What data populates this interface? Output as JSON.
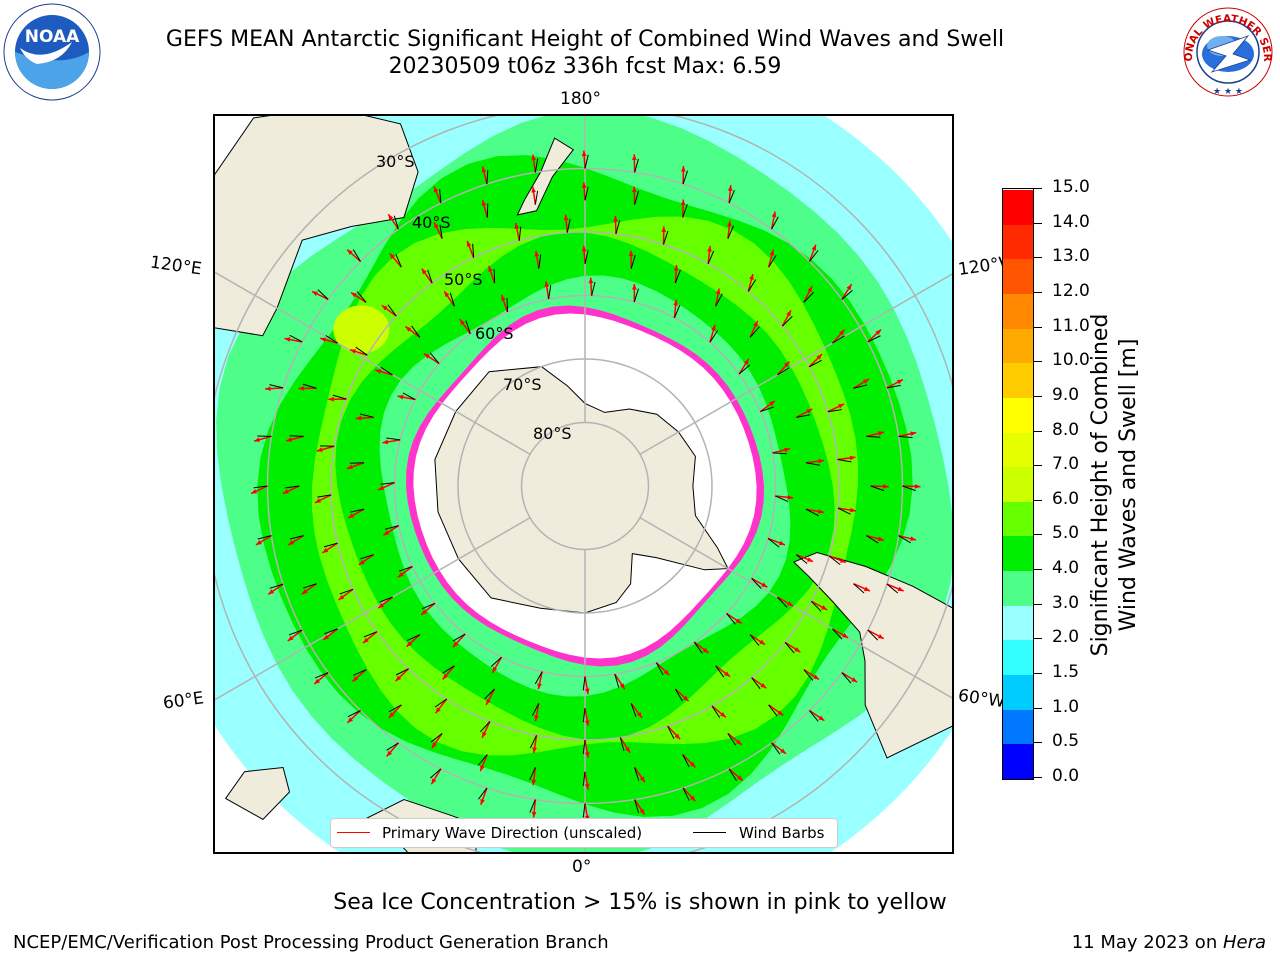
{
  "header": {
    "title_line1": "GEFS MEAN Antarctic Significant Height of Combined Wind Waves and Swell",
    "title_line2": "20230509 t06z 336h fcst   Max: 6.59",
    "noaa_logo_text": "NOAA",
    "nws_logo_text": "NATIONAL WEATHER SERVICE"
  },
  "map": {
    "projection": "south-polar-stereographic",
    "longitude_labels": {
      "top": "180°",
      "bottom": "0°",
      "left_upper": "120°E",
      "left_lower": "60°E",
      "right_upper": "120°W",
      "right_lower": "60°W"
    },
    "latitude_labels": [
      "30°S",
      "40°S",
      "50°S",
      "60°S",
      "70°S",
      "80°S"
    ],
    "colors": {
      "land": "#efecdc",
      "ice_shelf": "#ffffff",
      "sea_ice": "#ff33cc",
      "arrow": "#ff0000",
      "barb": "#000000",
      "grid": "#b3b3b3"
    },
    "wave_bands": [
      {
        "max_lat": -28,
        "color": "#99ffff",
        "range": "2.0-3.0"
      },
      {
        "max_lat": -38,
        "color": "#4dff88",
        "range": "3.0-4.0"
      },
      {
        "max_lat": -44,
        "color": "#00ee00",
        "range": "4.0-5.0"
      },
      {
        "max_lat": -50,
        "color": "#66ff00",
        "range": "5.0-6.0"
      },
      {
        "max_lat": -58,
        "color": "#00ee00",
        "range": "4.0-5.0"
      },
      {
        "max_lat": -62,
        "color": "#4dff88",
        "range": "3.0-4.0"
      }
    ]
  },
  "legend": {
    "wave_direction_label": "Primary Wave Direction (unscaled)",
    "wind_barbs_label": "Wind Barbs",
    "wave_direction_color": "#ff0000",
    "wind_barbs_color": "#000000"
  },
  "colorbar": {
    "label_line1": "Significant Height of Combined",
    "label_line2": "Wind Waves and Swell [m]",
    "ticks": [
      "0.0",
      "0.5",
      "1.0",
      "1.5",
      "2.0",
      "3.0",
      "4.0",
      "5.0",
      "6.0",
      "7.0",
      "8.0",
      "9.0",
      "10.0",
      "11.0",
      "12.0",
      "13.0",
      "14.0",
      "15.0"
    ],
    "colors": [
      "#0000ff",
      "#0077ff",
      "#00ccff",
      "#33ffff",
      "#99ffff",
      "#4dff88",
      "#00ee00",
      "#66ff00",
      "#ccff00",
      "#e6ff00",
      "#ffff00",
      "#ffcc00",
      "#ffaa00",
      "#ff8800",
      "#ff5500",
      "#ff2a00",
      "#ff0000"
    ]
  },
  "sea_ice_note": "Sea Ice Concentration > 15% is shown in pink to yellow",
  "footer": {
    "left": "NCEP/EMC/Verification Post Processing Product Generation Branch",
    "right_prefix": "11 May 2023 on ",
    "right_host": "Hera"
  }
}
